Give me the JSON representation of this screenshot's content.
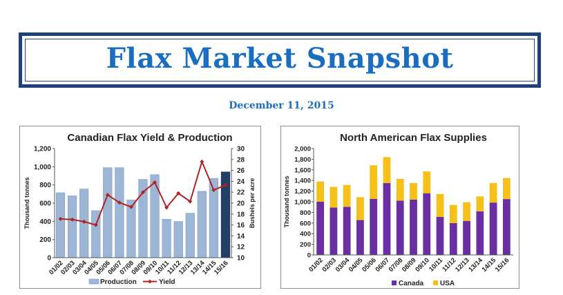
{
  "header": {
    "title": "Flax Market Snapshot",
    "date": "December 11, 2015"
  },
  "colors": {
    "banner_border": "#1d3f7a",
    "title": "#1a6ec0",
    "production": "#9db6d6",
    "production_last": "#243f66",
    "yield": "#b22222",
    "canada": "#6a2fa2",
    "usa": "#f5c01a"
  },
  "chart_data": [
    {
      "type": "bar",
      "title": "Canadian Flax Yield & Production",
      "categories": [
        "01/02",
        "02/03",
        "03/04",
        "04/05",
        "05/06",
        "06/07",
        "07/08",
        "08/09",
        "09/10",
        "10/11",
        "11/12",
        "12/13",
        "13/14",
        "14/15",
        "15/16"
      ],
      "series": [
        {
          "name": "Production",
          "type": "bar",
          "axis": "left",
          "values": [
            714,
            680,
            755,
            517,
            990,
            990,
            634,
            861,
            913,
            423,
            398,
            489,
            730,
            872,
            943
          ]
        },
        {
          "name": "Yield",
          "type": "line",
          "axis": "right",
          "values": [
            17.1,
            17.0,
            16.6,
            16.0,
            21.5,
            20.1,
            19.3,
            22.0,
            23.8,
            19.2,
            21.8,
            20.3,
            27.6,
            22.4,
            23.3
          ]
        }
      ],
      "ylabel": "Thousand tonnes",
      "ylim": [
        0,
        1200
      ],
      "yticks": [
        "0",
        "200",
        "400",
        "600",
        "800",
        "1,000",
        "1,200"
      ],
      "y2label": "Bushels per acre",
      "y2lim": [
        10,
        30
      ],
      "y2ticks": [
        "10",
        "12",
        "14",
        "16",
        "18",
        "20",
        "22",
        "24",
        "26",
        "28",
        "30"
      ],
      "legend_position": "bottom",
      "grid": false
    },
    {
      "type": "bar",
      "stacked": true,
      "title": "North American Flax Supplies",
      "categories": [
        "01/02",
        "02/03",
        "03/04",
        "04/05",
        "05/06",
        "06/07",
        "07/08",
        "08/09",
        "09/10",
        "10/11",
        "11/12",
        "12/13",
        "13/14",
        "14/15",
        "15/16"
      ],
      "series": [
        {
          "name": "Canada",
          "values": [
            1000,
            890,
            905,
            655,
            1055,
            1350,
            1020,
            1040,
            1160,
            715,
            600,
            640,
            820,
            985,
            1050
          ]
        },
        {
          "name": "USA",
          "values": [
            380,
            390,
            410,
            430,
            630,
            490,
            410,
            310,
            410,
            430,
            340,
            350,
            280,
            365,
            395
          ]
        }
      ],
      "ylabel": "Thousand tonnes",
      "ylim": [
        0,
        2000
      ],
      "yticks": [
        "0",
        "200",
        "400",
        "600",
        "800",
        "1,000",
        "1,200",
        "1,400",
        "1,600",
        "1,800",
        "2,000"
      ],
      "legend_position": "bottom",
      "grid": false
    }
  ]
}
